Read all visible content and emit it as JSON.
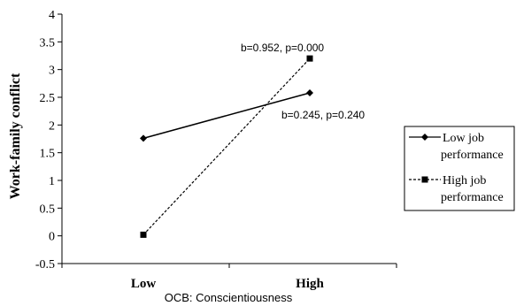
{
  "chart_data": {
    "type": "line",
    "title": "",
    "xlabel": "OCB: Conscientiousness",
    "ylabel": "Work-family conflict",
    "categories": [
      "Low",
      "High"
    ],
    "ylim": [
      -0.5,
      4
    ],
    "yticks": [
      "-0.5",
      "0",
      "0.5",
      "1",
      "1.5",
      "2",
      "2.5",
      "3",
      "3.5",
      "4"
    ],
    "series": [
      {
        "name_lines": [
          "Low job",
          "performance"
        ],
        "values": [
          1.76,
          2.58
        ],
        "style": "solid",
        "marker": "diamond",
        "annotation": "b=0.245, p=0.240"
      },
      {
        "name_lines": [
          "High job",
          "performance"
        ],
        "values": [
          0.02,
          3.2
        ],
        "style": "dashed",
        "marker": "square",
        "annotation": "b=0.952, p=0.000"
      }
    ],
    "legend": "right",
    "grid": false
  }
}
